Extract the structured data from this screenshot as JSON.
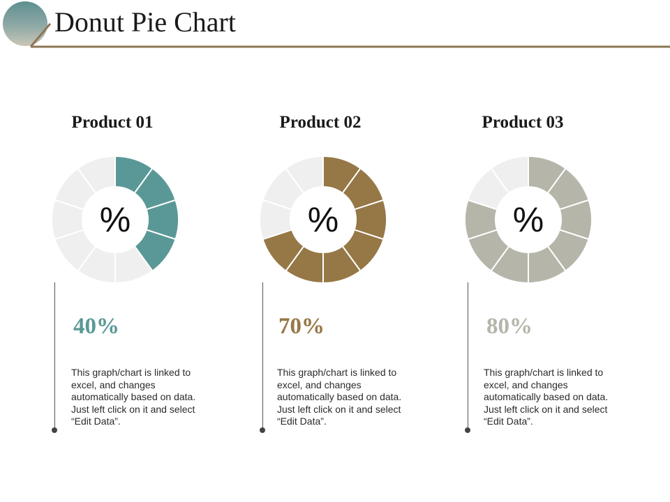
{
  "title": "Donut Pie Chart",
  "colors": {
    "accent_line": "#8c7653",
    "empty_segment": "#efefef"
  },
  "chart_data": [
    {
      "type": "pie",
      "style": "donut",
      "title": "Product 01",
      "center_label": "%",
      "value_label": "40%",
      "value": 40,
      "color": "#5a9897",
      "segments": 10,
      "description": "This graph/chart is linked to excel, and changes automatically based on data. Just left click on it and select “Edit Data”."
    },
    {
      "type": "pie",
      "style": "donut",
      "title": "Product 02",
      "center_label": "%",
      "value_label": "70%",
      "value": 70,
      "color": "#967746",
      "segments": 10,
      "description": "This graph/chart is linked to excel, and changes automatically based on data. Just left click on it and select “Edit Data”."
    },
    {
      "type": "pie",
      "style": "donut",
      "title": "Product 03",
      "center_label": "%",
      "value_label": "80%",
      "value": 80,
      "color": "#b6b5aa",
      "segments": 10,
      "description": "This graph/chart is linked to excel, and changes automatically based on data. Just left click on it and select “Edit Data”."
    }
  ]
}
